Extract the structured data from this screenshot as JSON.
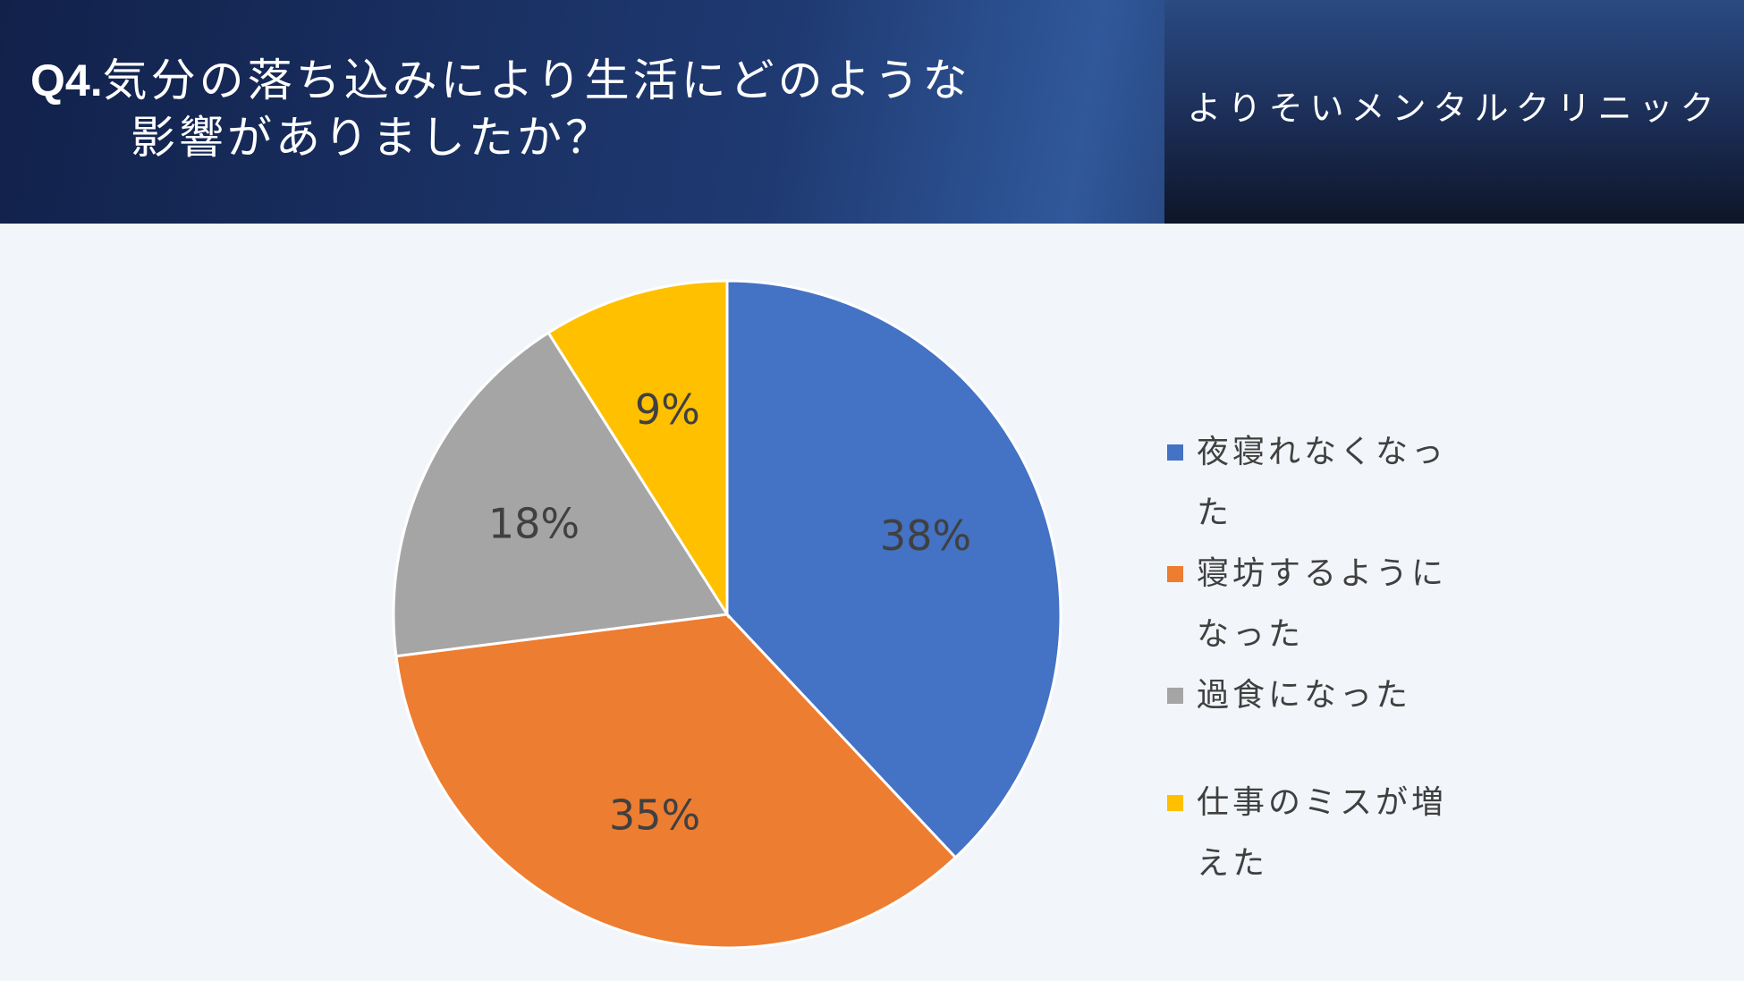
{
  "header": {
    "title_prefix": "Q4.",
    "title_line1": "気分の落ち込みにより生活にどのような",
    "title_line2": "影響がありましたか？",
    "clinic_name": "よりそいメンタルクリニック"
  },
  "chart_data": {
    "type": "pie",
    "categories": [
      "夜寝れなくなった",
      "寝坊するようになった",
      "過食になった",
      "仕事のミスが増えた"
    ],
    "values": [
      38,
      35,
      18,
      9
    ],
    "data_labels": [
      "38%",
      "35%",
      "18%",
      "9%"
    ],
    "colors": [
      "#4472c4",
      "#ed7d31",
      "#a5a5a5",
      "#ffc000"
    ],
    "legend_position": "right",
    "start_angle": "12 o'clock",
    "direction": "clockwise"
  }
}
